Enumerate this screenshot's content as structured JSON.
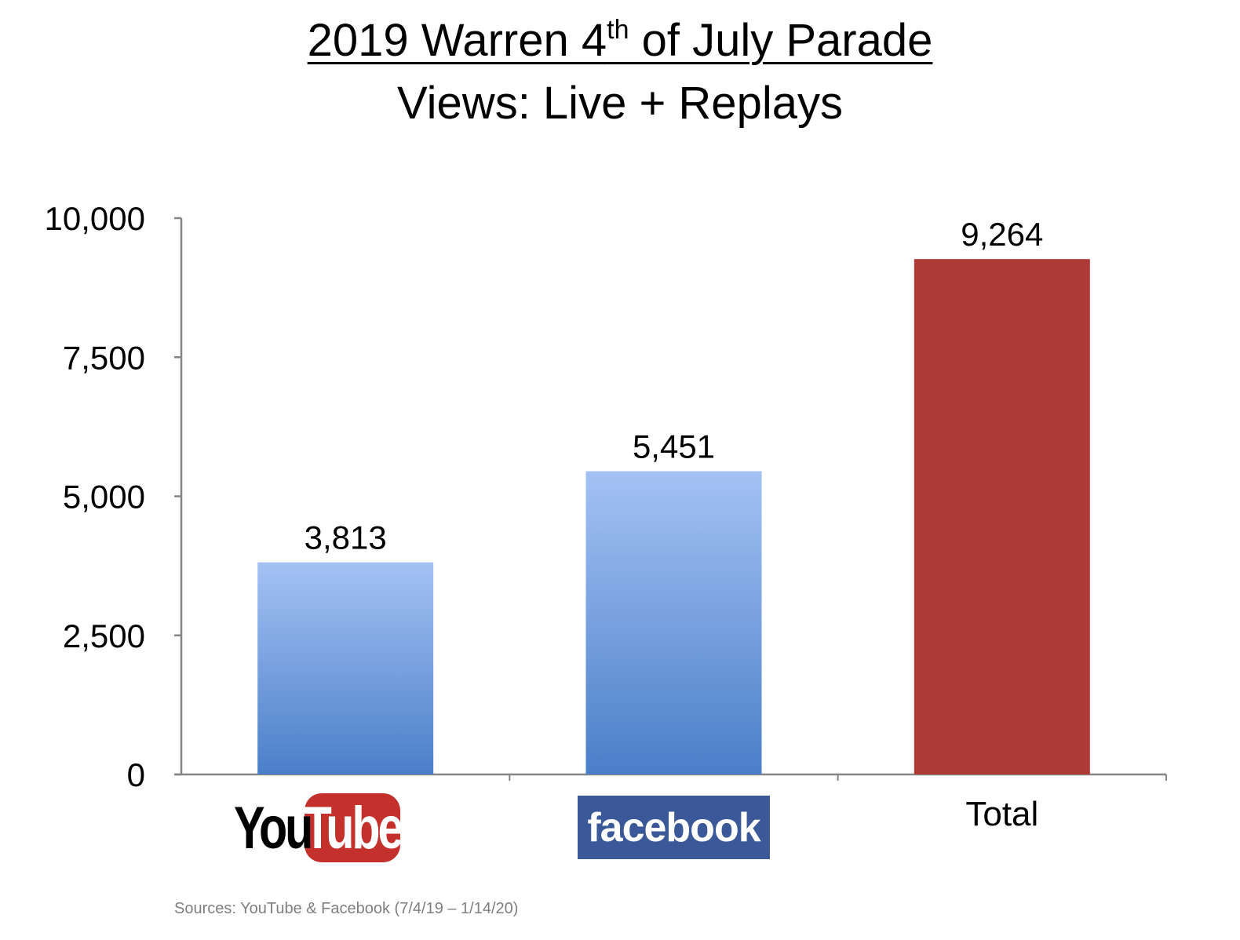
{
  "title": {
    "line1_main": "2019 Warren 4",
    "line1_sup": "th",
    "line1_rest": " of July Parade",
    "line2": "Views: Live + Replays"
  },
  "source": "Sources: YouTube & Facebook (7/4/19 – 1/14/20)",
  "logos": {
    "youtube_you": "You",
    "youtube_tube": "Tube",
    "facebook": "facebook"
  },
  "colors": {
    "blue_top": "#a4c2f4",
    "blue_bottom": "#4a7fc8",
    "red": "#ae3a38",
    "axis": "#868686",
    "youtube_red": "#c4302b",
    "facebook_blue": "#3b5998"
  },
  "chart_data": {
    "type": "bar",
    "categories": [
      "YouTube",
      "facebook",
      "Total"
    ],
    "category_labels_shown_as": [
      "logo",
      "logo",
      "text"
    ],
    "values": [
      3813,
      5451,
      9264
    ],
    "value_labels": [
      "3,813",
      "5,451",
      "9,264"
    ],
    "bar_colors": [
      "gradient-blue",
      "gradient-blue",
      "red"
    ],
    "title": "2019 Warren 4th of July Parade",
    "subtitle": "Views: Live + Replays",
    "xlabel": "",
    "ylabel": "",
    "ylim": [
      0,
      10000
    ],
    "yticks": [
      0,
      2500,
      5000,
      7500,
      10000
    ],
    "ytick_labels": [
      "0",
      "2,500",
      "5,000",
      "7,500",
      "10,000"
    ],
    "grid": false,
    "legend": "none"
  }
}
